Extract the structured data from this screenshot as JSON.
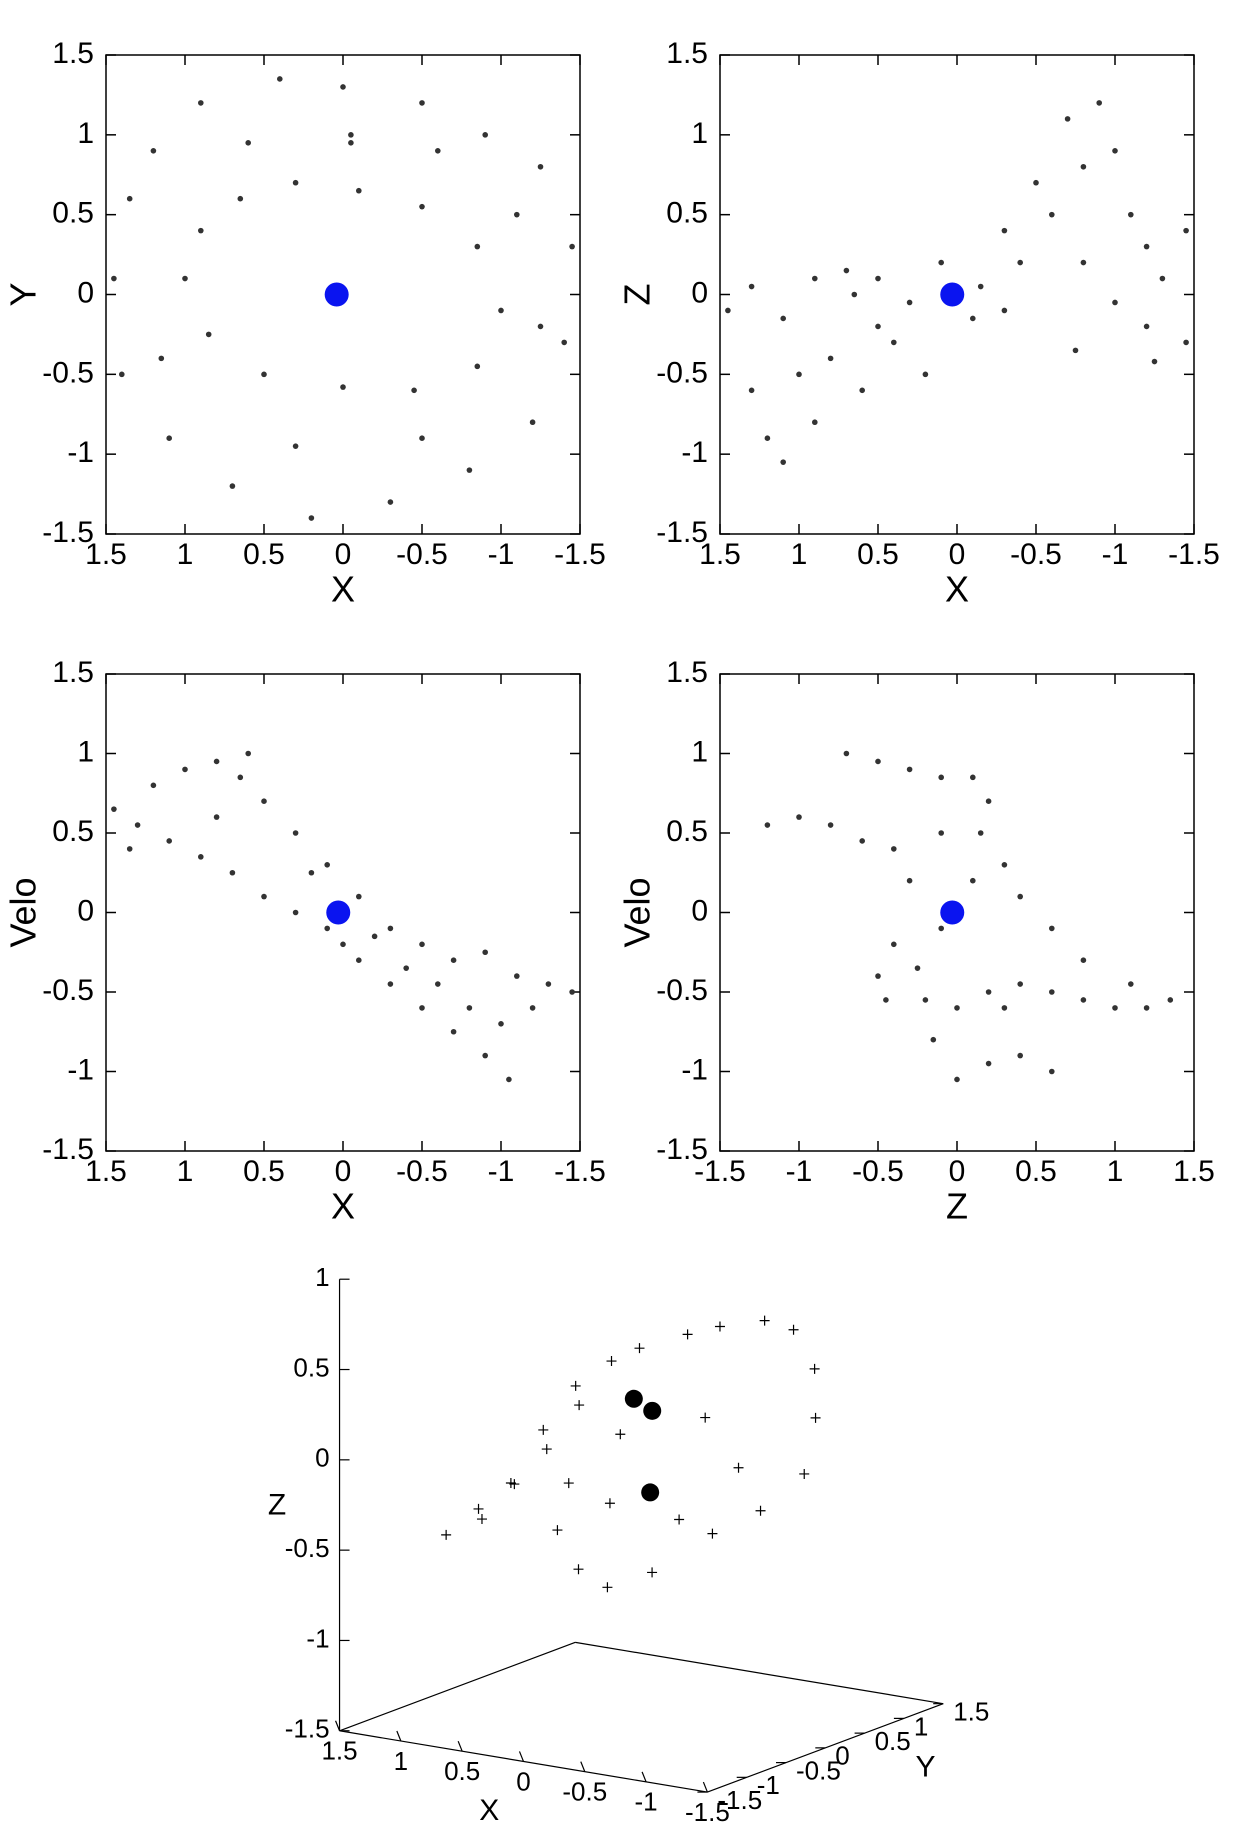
{
  "chart_data": [
    {
      "type": "scatter",
      "xlabel": "X",
      "ylabel": "Y",
      "xlim": [
        1.5,
        -1.5
      ],
      "ylim": [
        -1.5,
        1.5
      ],
      "xticks": [
        1.5,
        1,
        0.5,
        0,
        -0.5,
        -1,
        -1.5
      ],
      "yticks": [
        -1.5,
        -1,
        -0.5,
        0,
        0.5,
        1,
        1.5
      ],
      "color": "#333333",
      "x": [
        1.2,
        0.9,
        0.4,
        0,
        -0.5,
        -0.9,
        -1.25,
        -1.45,
        -1.4,
        -1.2,
        -0.8,
        -0.3,
        0.2,
        0.7,
        1.1,
        1.4,
        1.45,
        1.35,
        0.65,
        0.3,
        -0.1,
        -0.5,
        -0.85,
        -1.0,
        -0.85,
        -0.45,
        0,
        0.5,
        0.85,
        1.0,
        0.9,
        -0.05,
        0.6,
        -0.6,
        -1.1,
        1.15,
        0.3,
        -0.5,
        -0.05,
        -1.25
      ],
      "y": [
        0.9,
        1.2,
        1.35,
        1.3,
        1.2,
        1.0,
        0.8,
        0.3,
        -0.3,
        -0.8,
        -1.1,
        -1.3,
        -1.4,
        -1.2,
        -0.9,
        -0.5,
        0.1,
        0.6,
        0.6,
        0.7,
        0.65,
        0.55,
        0.3,
        -0.1,
        -0.45,
        -0.6,
        -0.58,
        -0.5,
        -0.25,
        0.1,
        0.4,
        0.95,
        0.95,
        0.9,
        0.5,
        -0.4,
        -0.95,
        -0.9,
        1.0,
        -0.2
      ],
      "center": {
        "x": 0.04,
        "y": 0,
        "color": "#0a14f0"
      }
    },
    {
      "type": "scatter",
      "xlabel": "X",
      "ylabel": "Z",
      "xlim": [
        1.5,
        -1.5
      ],
      "ylim": [
        -1.5,
        1.5
      ],
      "xticks": [
        1.5,
        1,
        0.5,
        0,
        -0.5,
        -1,
        -1.5
      ],
      "yticks": [
        -1.5,
        -1,
        -0.5,
        0,
        0.5,
        1,
        1.5
      ],
      "color": "#333333",
      "x": [
        1.45,
        1.3,
        1.1,
        0.9,
        0.7,
        0.5,
        0.3,
        0.1,
        -0.1,
        -0.3,
        1.3,
        1.2,
        1.0,
        0.9,
        0.8,
        0.6,
        1.1,
        0.4,
        0.2,
        -0.4,
        -0.6,
        -0.8,
        -0.9,
        -1.0,
        -0.7,
        -1.1,
        -1.2,
        -1.3,
        -1.45,
        -0.5,
        -0.3,
        -0.8,
        -1.0,
        -1.2,
        -1.45,
        -0.75,
        -1.25,
        0.65,
        -0.15,
        0.5
      ],
      "y": [
        -0.1,
        0.05,
        -0.15,
        0.1,
        0.15,
        0.1,
        -0.05,
        0.2,
        -0.15,
        -0.1,
        -0.6,
        -0.9,
        -0.5,
        -0.8,
        -0.4,
        -0.6,
        -1.05,
        -0.3,
        -0.5,
        0.2,
        0.5,
        0.8,
        1.2,
        0.9,
        1.1,
        0.5,
        0.3,
        0.1,
        0.4,
        0.7,
        0.4,
        0.2,
        -0.05,
        -0.2,
        -0.3,
        -0.35,
        -0.42,
        0,
        0.05,
        -0.2
      ],
      "center": {
        "x": 0.03,
        "y": 0,
        "color": "#0a14f0"
      }
    },
    {
      "type": "scatter",
      "xlabel": "X",
      "ylabel": "Velo",
      "xlim": [
        1.5,
        -1.5
      ],
      "ylim": [
        -1.5,
        1.5
      ],
      "xticks": [
        1.5,
        1,
        0.5,
        0,
        -0.5,
        -1,
        -1.5
      ],
      "yticks": [
        -1.5,
        -1,
        -0.5,
        0,
        0.5,
        1,
        1.5
      ],
      "color": "#333333",
      "x": [
        1.45,
        1.3,
        1.2,
        1.0,
        0.8,
        0.6,
        0.5,
        0.3,
        0.1,
        -0.1,
        -0.3,
        -0.5,
        -0.7,
        -0.9,
        -1.1,
        -1.3,
        -1.45,
        1.1,
        0.9,
        0.7,
        0.5,
        0.3,
        0.1,
        -0.1,
        -0.3,
        -0.5,
        -0.7,
        -0.9,
        -1.05,
        -0.8,
        -0.6,
        -1.0,
        0.65,
        1.35,
        0.0,
        -0.2,
        -0.4,
        -1.2,
        0.2,
        0.8
      ],
      "y": [
        0.65,
        0.55,
        0.8,
        0.9,
        0.95,
        1.0,
        0.7,
        0.5,
        0.3,
        0.1,
        -0.1,
        -0.2,
        -0.3,
        -0.25,
        -0.4,
        -0.45,
        -0.5,
        0.45,
        0.35,
        0.25,
        0.1,
        0,
        -0.1,
        -0.3,
        -0.45,
        -0.6,
        -0.75,
        -0.9,
        -1.05,
        -0.6,
        -0.45,
        -0.7,
        0.85,
        0.4,
        -0.2,
        -0.15,
        -0.35,
        -0.6,
        0.25,
        0.6
      ],
      "center": {
        "x": 0.03,
        "y": 0,
        "color": "#0a14f0"
      }
    },
    {
      "type": "scatter",
      "xlabel": "Z",
      "ylabel": "Velo",
      "xlim": [
        -1.5,
        1.5
      ],
      "ylim": [
        -1.5,
        1.5
      ],
      "xticks": [
        -1.5,
        -1,
        -0.5,
        0,
        0.5,
        1,
        1.5
      ],
      "yticks": [
        -1.5,
        -1,
        -0.5,
        0,
        0.5,
        1,
        1.5
      ],
      "color": "#333333",
      "x": [
        -1.2,
        -1.0,
        -0.8,
        -0.6,
        -0.4,
        -0.7,
        -0.5,
        -0.3,
        -0.1,
        0.1,
        0.2,
        0.15,
        -0.1,
        -0.3,
        -0.4,
        -0.5,
        -0.45,
        -0.2,
        0,
        0.2,
        0.4,
        0.6,
        0.8,
        1.0,
        1.2,
        1.35,
        1.1,
        0.8,
        0.6,
        0.4,
        0.3,
        -0.1,
        -0.15,
        0,
        0.2,
        0.4,
        0.6,
        0.3,
        0.1,
        -0.25
      ],
      "y": [
        0.55,
        0.6,
        0.55,
        0.45,
        0.4,
        1.0,
        0.95,
        0.9,
        0.85,
        0.85,
        0.7,
        0.5,
        0.5,
        0.2,
        -0.2,
        -0.4,
        -0.55,
        -0.55,
        -0.6,
        -0.5,
        -0.45,
        -0.5,
        -0.55,
        -0.6,
        -0.6,
        -0.55,
        -0.45,
        -0.3,
        -0.1,
        0.1,
        0.3,
        -0.1,
        -0.8,
        -1.05,
        -0.95,
        -0.9,
        -1.0,
        -0.6,
        0.2,
        -0.35
      ],
      "center": {
        "x": -0.03,
        "y": 0,
        "color": "#0a14f0"
      }
    },
    {
      "type": "scatter3d",
      "xlabel": "X",
      "ylabel": "Y",
      "zlabel": "Z",
      "xlim": [
        1.5,
        -1.5
      ],
      "ylim": [
        -1.5,
        1.5
      ],
      "zlim": [
        -1.5,
        1
      ],
      "xticks": [
        1.5,
        1,
        0.5,
        0,
        -0.5,
        -1,
        -1.5
      ],
      "yticks": [
        -1.5,
        -1,
        -0.5,
        0,
        0.5,
        1,
        1.5
      ],
      "zticks": [
        -1.5,
        -1,
        -0.5,
        0,
        0.5,
        1
      ],
      "color": "#000000",
      "x": [
        1.4,
        1.3,
        1.2,
        1.1,
        1.0,
        0.9,
        0.8,
        0.7,
        0.6,
        0.5,
        0.4,
        0.2,
        0,
        -0.3,
        -0.6,
        -0.9,
        -1.1,
        -1.2,
        -1.1,
        -0.9,
        -0.6,
        -0.3,
        0,
        0.3,
        0.4,
        0.3,
        -0.2,
        -0.6,
        -0.5,
        0
      ],
      "y": [
        -0.3,
        0,
        -0.2,
        0.1,
        -0.1,
        0.2,
        0,
        0.3,
        0.1,
        0.4,
        0.6,
        0.9,
        1.0,
        1.1,
        1.0,
        0.8,
        0.5,
        0.2,
        -0.2,
        -0.5,
        -0.8,
        -0.9,
        -0.8,
        -0.6,
        -0.3,
        0.2,
        0.5,
        0.3,
        -0.3,
        -0.4
      ],
      "z": [
        -0.6,
        -0.55,
        -0.45,
        -0.35,
        -0.3,
        -0.15,
        0,
        0.1,
        0.25,
        0.35,
        0.4,
        0.45,
        0.5,
        0.55,
        0.55,
        0.4,
        0.2,
        -0.05,
        -0.2,
        -0.3,
        -0.5,
        -0.6,
        -0.55,
        -0.4,
        -0.2,
        0,
        0.1,
        -0.1,
        -0.3,
        -0.25
      ],
      "spheres": {
        "x": [
          0.35,
          0.2,
          -0.2
        ],
        "y": [
          0.45,
          0.45,
          -0.2
        ],
        "z": [
          0.15,
          0.1,
          -0.2
        ]
      }
    }
  ]
}
